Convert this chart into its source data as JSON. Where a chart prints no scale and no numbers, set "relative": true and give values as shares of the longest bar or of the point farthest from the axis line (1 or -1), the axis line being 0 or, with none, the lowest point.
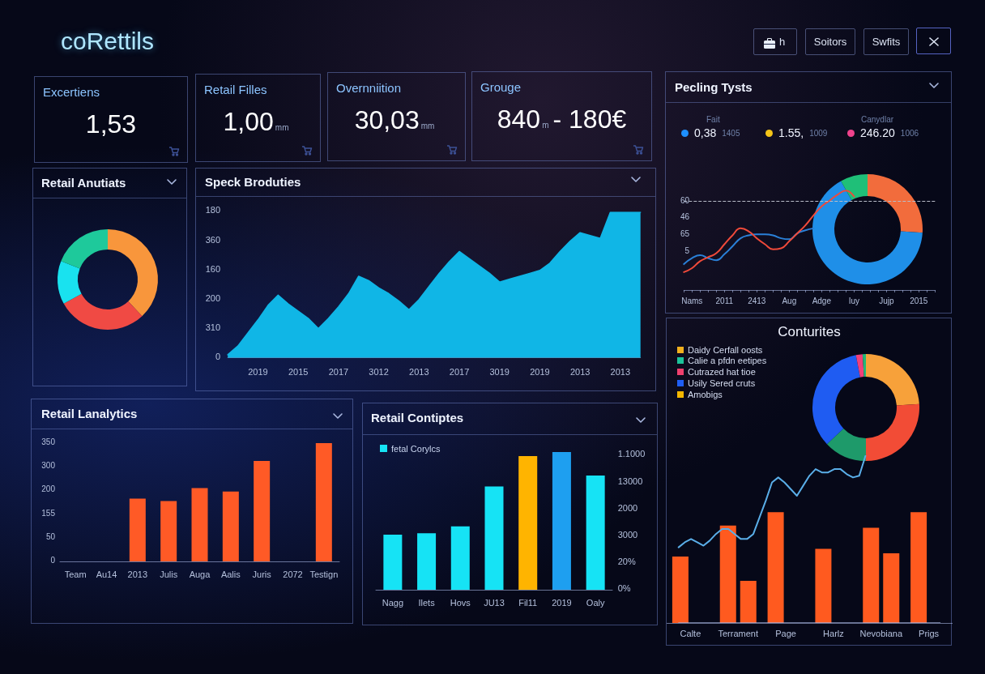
{
  "chart_data": [
    {
      "type": "other",
      "title": "coRettils",
      "annotations": [
        "h",
        "Soitors",
        "Swfits"
      ]
    },
    {
      "type": "other",
      "title": "Excertiens",
      "annotations": [
        "1,53"
      ]
    },
    {
      "type": "other",
      "title": "Retail Filles",
      "annotations": [
        "1,00",
        "mm"
      ]
    },
    {
      "type": "other",
      "title": "Overnniition",
      "annotations": [
        "30,03",
        "mm"
      ]
    },
    {
      "type": "other",
      "title": "Grouge",
      "annotations": [
        "840",
        "m",
        "- 180€"
      ]
    },
    {
      "type": "other",
      "annotations": [
        "Fait",
        "Canydlar",
        "0,38",
        "1405",
        "1.55,",
        "1009",
        "246.20",
        "1006"
      ],
      "colors": [
        "#1e90ff",
        "#f5c518",
        "#f0428c"
      ]
    },
    {
      "type": "line",
      "title": "Pecling Tysts",
      "relative": true,
      "categories": [
        null,
        "Nams",
        null,
        null,
        null,
        "2011",
        null,
        null,
        null,
        "2413",
        null,
        null,
        null,
        "Aug",
        null,
        null,
        null,
        "Adge",
        null,
        null,
        null,
        "Iuy",
        null,
        null,
        null,
        "Jujp",
        null,
        null,
        null,
        "2015",
        null,
        null
      ],
      "series": [
        {
          "color": "#2a80d8",
          "values": [
            0.26,
            0.32,
            0.35,
            0.32,
            0.3,
            0.36,
            0.44,
            0.52,
            0.55,
            0.56,
            0.56,
            0.55,
            0.52,
            0.51,
            0.57,
            0.6,
            0.62,
            null,
            null,
            null,
            null,
            null,
            null,
            null,
            null,
            null,
            null,
            null,
            null,
            null,
            null,
            null
          ]
        },
        {
          "color": "#f04a3a",
          "values": [
            0.18,
            0.22,
            0.29,
            0.33,
            0.37,
            0.46,
            0.55,
            0.62,
            0.59,
            0.52,
            0.46,
            0.41,
            0.42,
            0.49,
            0.57,
            0.65,
            0.75,
            0.84,
            0.9,
            0.96,
            1.0,
            0.94,
            null,
            null,
            null,
            null,
            null,
            null,
            null,
            null,
            null,
            null
          ]
        }
      ],
      "annotations": [
        "5",
        "65",
        "46",
        "60"
      ],
      "ref_lines": [
        {
          "axis": "y",
          "value": 0.89,
          "color": "#b8bcc8",
          "line_style": "dashed"
        }
      ],
      "marker": "none"
    },
    {
      "type": "donut",
      "categories": [
        null,
        null,
        null
      ],
      "values": [
        26,
        66,
        8
      ],
      "colors": [
        "#f26c3c",
        "#1f8fe8",
        "#1fbf78"
      ]
    },
    {
      "type": "donut",
      "title": "Retail Anutiats",
      "categories": [
        null,
        null,
        null,
        null
      ],
      "values": [
        38,
        29,
        14,
        19
      ],
      "colors": [
        "#f8963c",
        "#f04a44",
        "#19e2ef",
        "#1ec99b"
      ]
    },
    {
      "type": "area",
      "title": "Speck Broduties",
      "relative": true,
      "categories": [
        null,
        null,
        null,
        "2019",
        null,
        null,
        null,
        "2015",
        null,
        null,
        null,
        "2017",
        null,
        null,
        null,
        "3012",
        null,
        null,
        null,
        "2013",
        null,
        null,
        null,
        "2017",
        null,
        null,
        null,
        "3019",
        null,
        null,
        null,
        "2019",
        null,
        null,
        null,
        "2013",
        null,
        null,
        null,
        "2013",
        null,
        null
      ],
      "values": [
        0.02,
        0.08,
        0.17,
        0.26,
        0.36,
        0.43,
        0.37,
        0.32,
        0.27,
        0.2,
        0.27,
        0.35,
        0.44,
        0.56,
        0.53,
        0.48,
        0.44,
        0.39,
        0.33,
        0.4,
        0.49,
        0.58,
        0.66,
        0.73,
        0.68,
        0.63,
        0.58,
        0.52,
        0.54,
        0.56,
        0.58,
        0.6,
        0.65,
        0.73,
        0.8,
        0.86,
        0.84,
        0.82,
        1.0,
        1.0,
        1.0,
        1.0
      ],
      "color": "#10b6e6",
      "annotations": [
        "0",
        "310",
        "200",
        "160",
        "360",
        "180"
      ],
      "marker": "none"
    },
    {
      "type": "other",
      "title": "Conturites",
      "annotations": [
        "Daidy Cerfall oosts",
        "Calie a pfdn eetipes",
        "Cutrazed hat tioe",
        "Usily Sered cruts",
        "Amobigs"
      ],
      "colors": [
        "#f2b01e",
        "#1cc39a",
        "#f0406e",
        "#1f5ef5",
        "#f5b700"
      ]
    },
    {
      "type": "donut",
      "categories": [
        null,
        null,
        null,
        null,
        null,
        null
      ],
      "values": [
        24,
        26,
        13,
        34,
        2,
        1
      ],
      "colors": [
        "#f7a13a",
        "#f24c36",
        "#1e9a6a",
        "#1f5cf2",
        "#f0407a",
        "#22b878"
      ]
    },
    {
      "type": "bar",
      "relative": true,
      "categories": [
        "Calte",
        "Terrament",
        "Page",
        "Harlz",
        "Nevobiana",
        "Prigs"
      ],
      "series": [
        {
          "color": "#ff5a1f",
          "values": [
            0.6,
            0.88,
            1.0,
            0.67,
            0.86,
            1.0
          ]
        },
        {
          "color": "#ff5a1f",
          "values": [
            null,
            0.38,
            null,
            null,
            0.63,
            null
          ]
        }
      ]
    },
    {
      "type": "line",
      "relative": true,
      "categories": [
        null,
        null,
        null,
        null,
        null,
        null,
        null,
        null,
        null,
        null,
        null,
        null,
        null,
        null,
        null,
        null,
        null,
        null,
        null,
        null,
        null,
        null,
        null,
        null,
        null,
        null,
        null,
        null,
        null,
        null,
        null,
        null,
        null,
        null,
        null,
        null,
        null,
        null,
        null,
        null,
        null,
        null,
        null
      ],
      "series": [
        {
          "color": "#5aaee8",
          "values": [
            0.45,
            0.48,
            0.5,
            0.48,
            0.46,
            0.49,
            0.53,
            0.56,
            0.56,
            0.53,
            0.5,
            0.5,
            0.53,
            0.63,
            0.73,
            0.84,
            0.87,
            0.84,
            0.8,
            0.76,
            0.82,
            0.88,
            0.92,
            0.9,
            0.9,
            0.92,
            0.92,
            0.89,
            0.87,
            0.88,
            1.0,
            null,
            null,
            null,
            null,
            null,
            null,
            null,
            null,
            null,
            null,
            null,
            null
          ]
        }
      ],
      "marker": "none"
    },
    {
      "type": "bar",
      "title": "Retail Lanalytics",
      "relative": true,
      "categories": [
        "Team",
        "Au14",
        "2013",
        "Julis",
        "Auga",
        "Aalis",
        "Juris",
        "2072",
        "Testign"
      ],
      "values": [
        null,
        null,
        0.53,
        0.51,
        0.62,
        0.59,
        0.85,
        null,
        1.0
      ],
      "color": "#ff5a26",
      "annotations": [
        "0",
        "50",
        "155",
        "200",
        "300",
        "350"
      ]
    },
    {
      "type": "bar",
      "title": "Retail Contiptes",
      "relative": true,
      "categories": [
        "Nagg",
        "Ilets",
        "Hovs",
        "JU13",
        "Fil11",
        "2019",
        "Oaly"
      ],
      "series": [
        {
          "name": "fetal Corylcs",
          "color": "#16e3f5",
          "colors": [
            "#16e3f5",
            "#16e3f5",
            "#16e3f5",
            "#16e3f5",
            "#ffb400",
            "#1e9ff0",
            "#16e3f5"
          ],
          "values": [
            0.4,
            0.41,
            0.46,
            0.75,
            0.97,
            1.0,
            0.83
          ]
        }
      ],
      "annotations": [
        "0%",
        "20%",
        "3000",
        "2000",
        "13000",
        "1.1000"
      ],
      "legend": "top left"
    }
  ]
}
